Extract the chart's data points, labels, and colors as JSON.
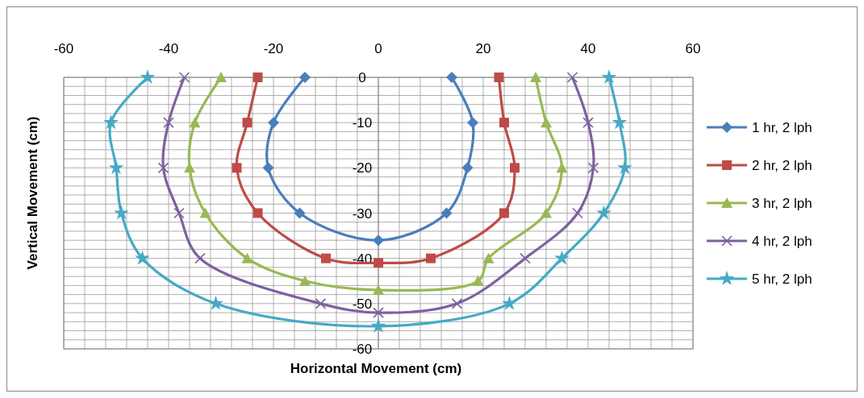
{
  "chart_data": {
    "type": "line",
    "xlabel": "Horizontal Movement (cm)",
    "ylabel": "Vertical Movement (cm)",
    "xlim": [
      -60,
      60
    ],
    "ylim": [
      -60,
      0
    ],
    "xticks": [
      -60,
      {
        "value": -56,
        "label": null
      },
      {
        "value": -52,
        "label": null
      },
      {
        "value": -48,
        "label": null
      },
      {
        "value": -44,
        "label": null
      },
      -40,
      {
        "value": -36,
        "label": null
      },
      {
        "value": -32,
        "label": null
      },
      {
        "value": -28,
        "label": null
      },
      {
        "value": -24,
        "label": null
      },
      -20,
      {
        "value": -16,
        "label": null
      },
      {
        "value": -12,
        "label": null
      },
      {
        "value": -8,
        "label": null
      },
      {
        "value": -4,
        "label": null
      },
      0,
      {
        "value": 4,
        "label": null
      },
      {
        "value": 8,
        "label": null
      },
      {
        "value": 12,
        "label": null
      },
      {
        "value": 16,
        "label": null
      },
      20,
      {
        "value": 24,
        "label": null
      },
      {
        "value": 28,
        "label": null
      },
      {
        "value": 32,
        "label": null
      },
      {
        "value": 36,
        "label": null
      },
      40,
      {
        "value": 44,
        "label": null
      },
      {
        "value": 48,
        "label": null
      },
      {
        "value": 52,
        "label": null
      },
      {
        "value": 56,
        "label": null
      },
      60
    ],
    "yticks": [
      0,
      {
        "value": -2,
        "label": null
      },
      {
        "value": -4,
        "label": null
      },
      {
        "value": -6,
        "label": null
      },
      {
        "value": -8,
        "label": null
      },
      -10,
      {
        "value": -12,
        "label": null
      },
      {
        "value": -14,
        "label": null
      },
      {
        "value": -16,
        "label": null
      },
      {
        "value": -18,
        "label": null
      },
      -20,
      {
        "value": -22,
        "label": null
      },
      {
        "value": -24,
        "label": null
      },
      {
        "value": -26,
        "label": null
      },
      {
        "value": -28,
        "label": null
      },
      -30,
      {
        "value": -32,
        "label": null
      },
      {
        "value": -34,
        "label": null
      },
      {
        "value": -36,
        "label": null
      },
      {
        "value": -38,
        "label": null
      },
      -40,
      {
        "value": -42,
        "label": null
      },
      {
        "value": -44,
        "label": null
      },
      {
        "value": -46,
        "label": null
      },
      {
        "value": -48,
        "label": null
      },
      -50,
      {
        "value": -52,
        "label": null
      },
      {
        "value": -54,
        "label": null
      },
      {
        "value": -56,
        "label": null
      },
      {
        "value": -58,
        "label": null
      },
      -60
    ],
    "grid": true,
    "legend": "right",
    "line_style": "solid",
    "series": [
      {
        "name": "1 hr, 2 lph",
        "color": "#4a7ebb",
        "marker": "diamond",
        "x": [
          -14,
          -20,
          -21,
          -15,
          0,
          13,
          17,
          18,
          14
        ],
        "values": [
          0,
          -10,
          -20,
          -30,
          -36,
          -30,
          -20,
          -10,
          0
        ]
      },
      {
        "name": "2 hr, 2 lph",
        "color": "#be4b48",
        "marker": "square",
        "x": [
          -23,
          -25,
          -27,
          -23,
          -10,
          0,
          10,
          24,
          26,
          24,
          23
        ],
        "values": [
          0,
          -10,
          -20,
          -30,
          -40,
          -41,
          -40,
          -30,
          -20,
          -10,
          0
        ]
      },
      {
        "name": "3 hr, 2 lph",
        "color": "#98b954",
        "marker": "triangle",
        "x": [
          -30,
          -35,
          -36,
          -33,
          -25,
          -14,
          0,
          19,
          21,
          32,
          35,
          32,
          30
        ],
        "values": [
          0,
          -10,
          -20,
          -30,
          -40,
          -45,
          -47,
          -45,
          -40,
          -30,
          -20,
          -10,
          0
        ]
      },
      {
        "name": "4 hr, 2 lph",
        "color": "#7d60a0",
        "marker": "cross",
        "x": [
          -37,
          -40,
          -41,
          -38,
          -34,
          -11,
          0,
          15,
          28,
          38,
          41,
          40,
          37
        ],
        "values": [
          0,
          -10,
          -20,
          -30,
          -40,
          -50,
          -52,
          -50,
          -40,
          -30,
          -20,
          -10,
          0
        ]
      },
      {
        "name": "5 hr, 2 lph",
        "color": "#46aac5",
        "marker": "star",
        "x": [
          -44,
          -51,
          -50,
          -49,
          -45,
          -31,
          0,
          25,
          35,
          43,
          47,
          46,
          44
        ],
        "values": [
          0,
          -10,
          -20,
          -30,
          -40,
          -50,
          -55,
          -50,
          -40,
          -30,
          -20,
          -10,
          0
        ]
      }
    ]
  }
}
